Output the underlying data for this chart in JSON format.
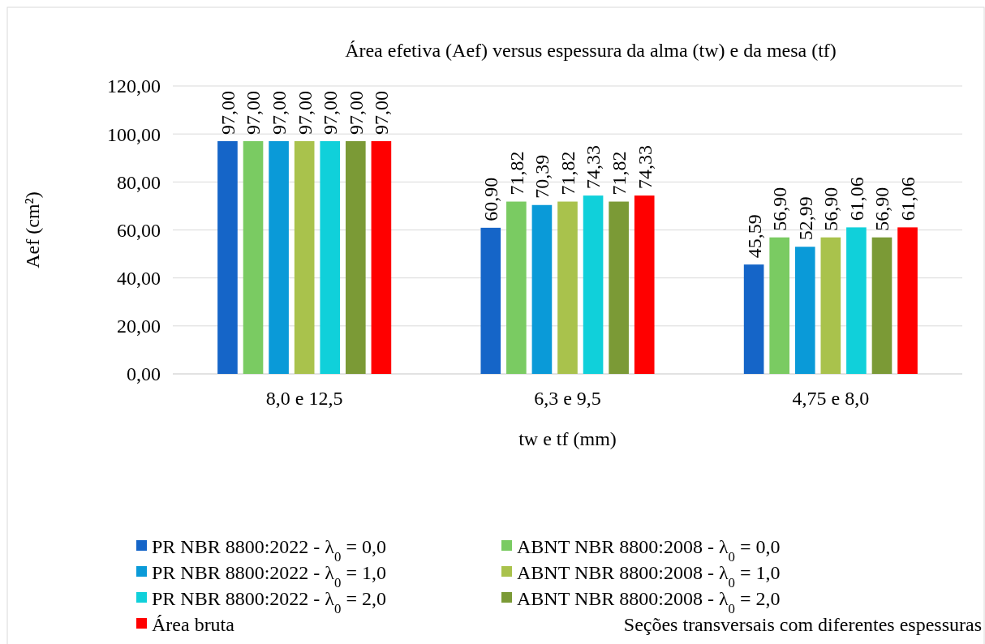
{
  "chart_data": {
    "type": "bar",
    "title": "Área efetiva  (Aef) versus espessura da alma (tw) e da mesa (tf)",
    "xlabel": "tw e tf (mm)",
    "ylabel": "Aef (cm²)",
    "categories": [
      "8,0 e 12,5",
      "6,3 e 9,5",
      "4,75 e 8,0"
    ],
    "series": [
      {
        "name": "PR NBR 8800:2022  - λ$_{0}$ = 0,0",
        "color": "#1565c8",
        "values": [
          97.0,
          60.9,
          45.59
        ],
        "value_labels": [
          "97,00",
          "60,90",
          "45,59"
        ]
      },
      {
        "name": "ABNT NBR 8800:2008  - λ$_{0}$ = 0,0",
        "color": "#7acb62",
        "values": [
          97.0,
          71.82,
          56.9
        ],
        "value_labels": [
          "97,00",
          "71,82",
          "56,90"
        ]
      },
      {
        "name": "PR NBR 8800:2022  - λ$_{0}$ = 1,0",
        "color": "#0a9ad8",
        "values": [
          97.0,
          70.39,
          52.99
        ],
        "value_labels": [
          "97,00",
          "70,39",
          "52,99"
        ]
      },
      {
        "name": "ABNT NBR 8800:2008  - λ$_{0}$ = 1,0",
        "color": "#a9c24c",
        "values": [
          97.0,
          71.82,
          56.9
        ],
        "value_labels": [
          "97,00",
          "71,82",
          "56,90"
        ]
      },
      {
        "name": "PR NBR 8800:2022  - λ$_{0}$ = 2,0",
        "color": "#10d0da",
        "values": [
          97.0,
          74.33,
          61.06
        ],
        "value_labels": [
          "97,00",
          "74,33",
          "61,06"
        ]
      },
      {
        "name": "ABNT NBR 8800:2008  - λ$_{0}$ = 2,0",
        "color": "#7b9a36",
        "values": [
          97.0,
          71.82,
          56.9
        ],
        "value_labels": [
          "97,00",
          "71,82",
          "56,90"
        ]
      },
      {
        "name": "Área bruta",
        "color": "#ff0000",
        "values": [
          97.0,
          74.33,
          61.06
        ],
        "value_labels": [
          "97,00",
          "74,33",
          "61,06"
        ]
      }
    ],
    "ylim": [
      0,
      120
    ],
    "yticks": [
      {
        "value": 0,
        "label": "0,00"
      },
      {
        "value": 20,
        "label": "20,00"
      },
      {
        "value": 40,
        "label": "40,00"
      },
      {
        "value": 60,
        "label": "60,00"
      },
      {
        "value": 80,
        "label": "80,00"
      },
      {
        "value": 100,
        "label": "100,00"
      },
      {
        "value": 120,
        "label": "120,00"
      }
    ],
    "grid": "y",
    "legend": "bottom",
    "annotations": [
      "Seções transversais  com diferentes  espessuras"
    ]
  }
}
